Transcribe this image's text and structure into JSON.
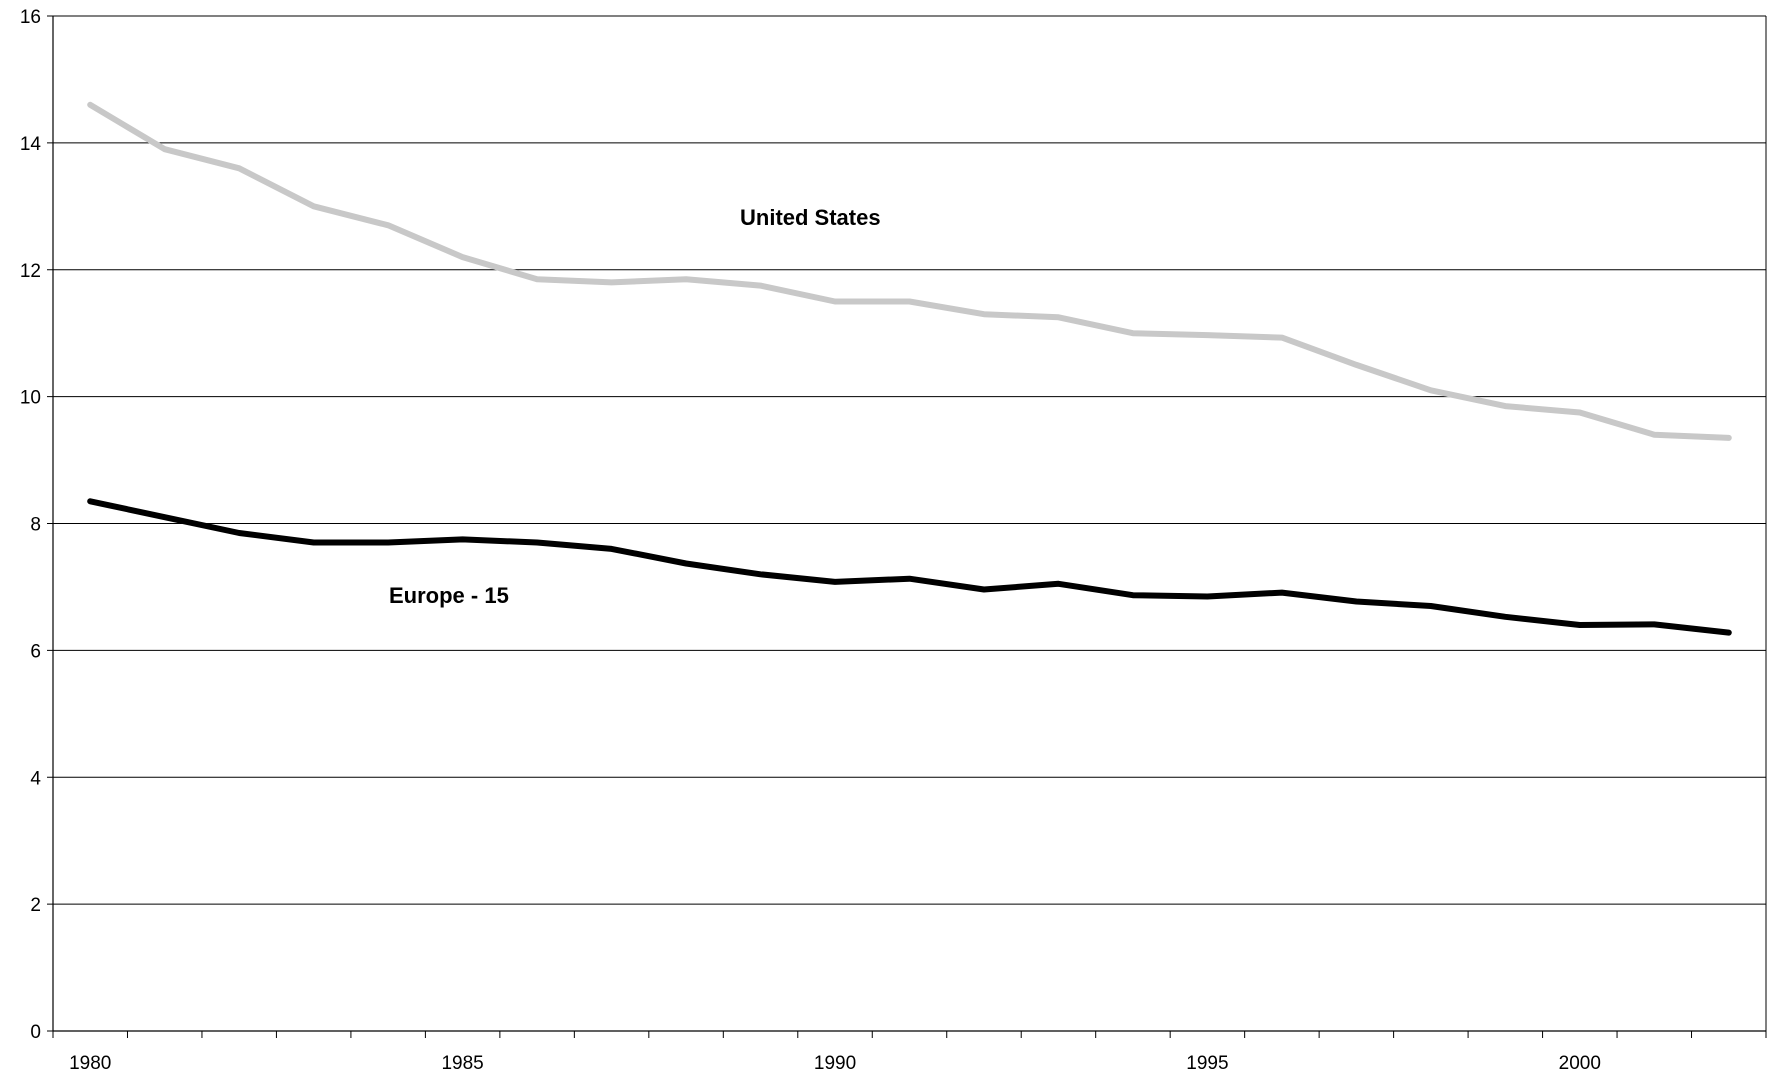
{
  "chart_data": {
    "type": "line",
    "title": "",
    "xlabel": "",
    "ylabel": "",
    "x": [
      1980,
      1981,
      1982,
      1983,
      1984,
      1985,
      1986,
      1987,
      1988,
      1989,
      1990,
      1991,
      1992,
      1993,
      1994,
      1995,
      1996,
      1997,
      1998,
      1999,
      2000,
      2001,
      2002
    ],
    "xlim": [
      1979.5,
      2002.5
    ],
    "ylim": [
      0,
      16
    ],
    "y_ticks": [
      "0",
      "2",
      "4",
      "6",
      "8",
      "10",
      "12",
      "14",
      "16"
    ],
    "x_ticks": [
      "1980",
      "1985",
      "1990",
      "1995",
      "2000"
    ],
    "grid": true,
    "legend": "none",
    "series": [
      {
        "name": "United States",
        "color": "#c8c8c8",
        "values": [
          14.6,
          13.9,
          13.6,
          13.0,
          12.7,
          12.2,
          11.85,
          11.8,
          11.85,
          11.75,
          11.5,
          11.5,
          11.3,
          11.25,
          11.0,
          10.97,
          10.93,
          10.5,
          10.1,
          9.85,
          9.75,
          9.4,
          9.35
        ]
      },
      {
        "name": "Europe - 15",
        "color": "#000000",
        "values": [
          8.35,
          8.1,
          7.85,
          7.7,
          7.7,
          7.75,
          7.7,
          7.6,
          7.37,
          7.2,
          7.08,
          7.13,
          6.96,
          7.05,
          6.87,
          6.85,
          6.91,
          6.77,
          6.7,
          6.53,
          6.4,
          6.41,
          6.28
        ]
      }
    ]
  }
}
